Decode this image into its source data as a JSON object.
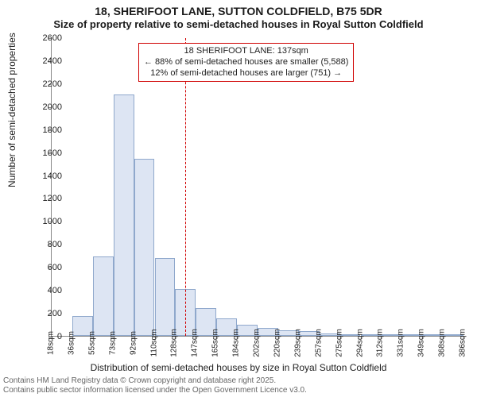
{
  "title": "18, SHERIFOOT LANE, SUTTON COLDFIELD, B75 5DR",
  "subtitle": "Size of property relative to semi-detached houses in Royal Sutton Coldfield",
  "ylabel": "Number of semi-detached properties",
  "xlabel": "Distribution of semi-detached houses by size in Royal Sutton Coldfield",
  "chart": {
    "type": "histogram",
    "ylim": [
      0,
      2600
    ],
    "yticks": [
      0,
      200,
      400,
      600,
      800,
      1000,
      1200,
      1400,
      1600,
      1800,
      2000,
      2200,
      2400,
      2600
    ],
    "xtick_labels": [
      "18sqm",
      "36sqm",
      "55sqm",
      "73sqm",
      "92sqm",
      "110sqm",
      "128sqm",
      "147sqm",
      "165sqm",
      "184sqm",
      "202sqm",
      "220sqm",
      "239sqm",
      "257sqm",
      "275sqm",
      "294sqm",
      "312sqm",
      "331sqm",
      "349sqm",
      "368sqm",
      "386sqm"
    ],
    "values": [
      0,
      170,
      690,
      2100,
      1540,
      680,
      410,
      240,
      150,
      100,
      70,
      50,
      40,
      20,
      10,
      8,
      8,
      6,
      4,
      4
    ],
    "bar_fill": "#dde5f3",
    "bar_border": "#8fa8cc",
    "marker_value": 137,
    "marker_color": "#d00000",
    "background": "#ffffff"
  },
  "annotation": {
    "line1": "18 SHERIFOOT LANE: 137sqm",
    "line2": "← 88% of semi-detached houses are smaller (5,588)",
    "line3": "12% of semi-detached houses are larger (751) →"
  },
  "attribution": {
    "line1": "Contains HM Land Registry data © Crown copyright and database right 2025.",
    "line2": "Contains public sector information licensed under the Open Government Licence v3.0."
  }
}
